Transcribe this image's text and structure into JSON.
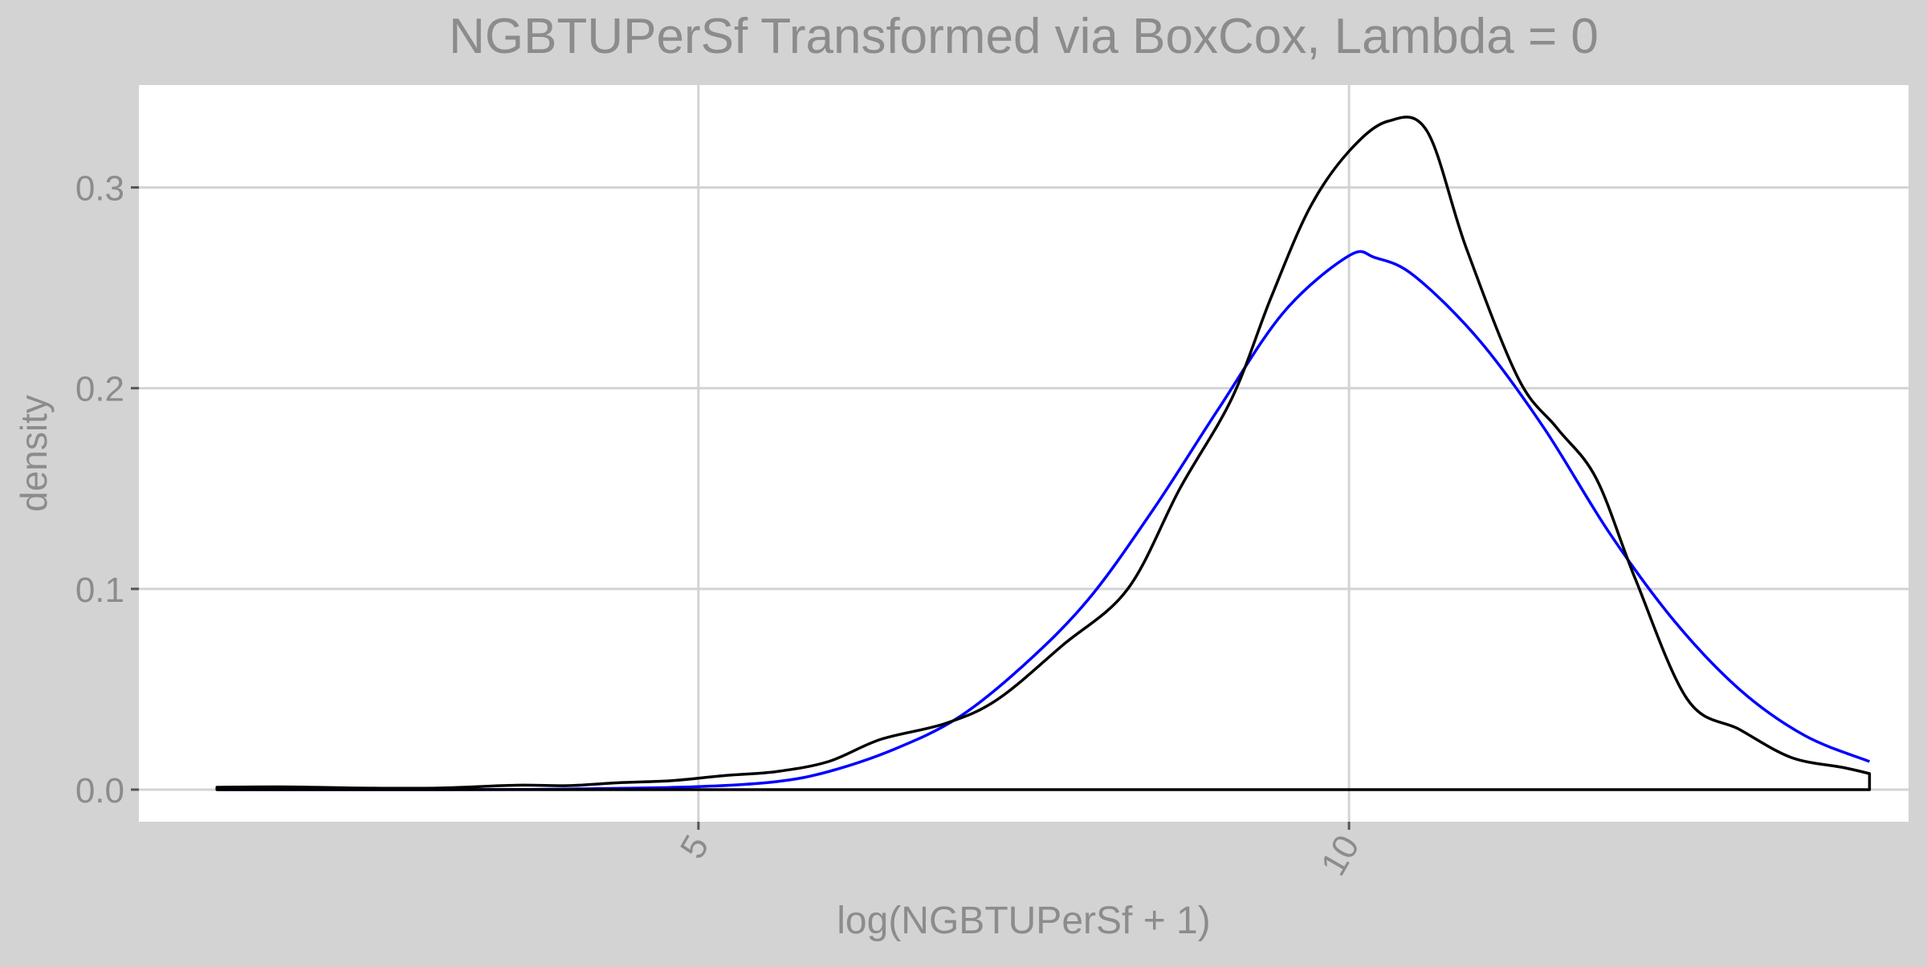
{
  "chart_data": {
    "type": "line",
    "title": "NGBTUPerSf Transformed via BoxCox, Lambda = 0",
    "xlabel": "log(NGBTUPerSf + 1)",
    "ylabel": "density",
    "xlim": [
      0.7,
      14.3
    ],
    "ylim": [
      -0.016,
      0.351
    ],
    "x_ticks": [
      {
        "value": 5,
        "label": "5"
      },
      {
        "value": 10,
        "label": "10"
      }
    ],
    "y_ticks": [
      {
        "value": 0.0,
        "label": "0.0"
      },
      {
        "value": 0.1,
        "label": "0.1"
      },
      {
        "value": 0.2,
        "label": "0.2"
      },
      {
        "value": 0.3,
        "label": "0.3"
      }
    ],
    "grid": true,
    "legend": "none",
    "series": [
      {
        "color": "#000000",
        "style": "kernel-density",
        "points": [
          [
            1.3,
            0.0012
          ],
          [
            1.8,
            0.0014
          ],
          [
            2.4,
            0.0008
          ],
          [
            3.0,
            0.0008
          ],
          [
            3.6,
            0.0022
          ],
          [
            4.0,
            0.002
          ],
          [
            4.4,
            0.0035
          ],
          [
            4.8,
            0.0045
          ],
          [
            5.2,
            0.007
          ],
          [
            5.6,
            0.009
          ],
          [
            6.0,
            0.014
          ],
          [
            6.4,
            0.025
          ],
          [
            6.9,
            0.033
          ],
          [
            7.3,
            0.045
          ],
          [
            7.8,
            0.072
          ],
          [
            8.3,
            0.1
          ],
          [
            8.7,
            0.15
          ],
          [
            9.1,
            0.195
          ],
          [
            9.4,
            0.245
          ],
          [
            9.7,
            0.29
          ],
          [
            10.0,
            0.318
          ],
          [
            10.3,
            0.333
          ],
          [
            10.6,
            0.328
          ],
          [
            10.9,
            0.27
          ],
          [
            11.3,
            0.205
          ],
          [
            11.6,
            0.18
          ],
          [
            11.9,
            0.155
          ],
          [
            12.2,
            0.105
          ],
          [
            12.6,
            0.045
          ],
          [
            13.0,
            0.03
          ],
          [
            13.4,
            0.016
          ],
          [
            13.8,
            0.011
          ],
          [
            14.0,
            0.008
          ]
        ]
      },
      {
        "color": "#0000ff",
        "style": "normal-fit",
        "points": [
          [
            1.3,
            0.0
          ],
          [
            3.0,
            0.0
          ],
          [
            4.0,
            0.0003
          ],
          [
            5.0,
            0.0015
          ],
          [
            5.6,
            0.004
          ],
          [
            6.0,
            0.009
          ],
          [
            6.5,
            0.02
          ],
          [
            7.0,
            0.036
          ],
          [
            7.5,
            0.062
          ],
          [
            8.0,
            0.095
          ],
          [
            8.5,
            0.14
          ],
          [
            9.0,
            0.19
          ],
          [
            9.5,
            0.238
          ],
          [
            10.0,
            0.266
          ],
          [
            10.2,
            0.265
          ],
          [
            10.5,
            0.256
          ],
          [
            11.0,
            0.224
          ],
          [
            11.5,
            0.18
          ],
          [
            12.0,
            0.128
          ],
          [
            12.5,
            0.084
          ],
          [
            13.0,
            0.05
          ],
          [
            13.5,
            0.027
          ],
          [
            14.0,
            0.014
          ]
        ]
      }
    ]
  },
  "colors": {
    "background": "#d3d3d3",
    "panel": "#ffffff",
    "grid": "#d3d3d3",
    "text": "#8c8c8c"
  }
}
